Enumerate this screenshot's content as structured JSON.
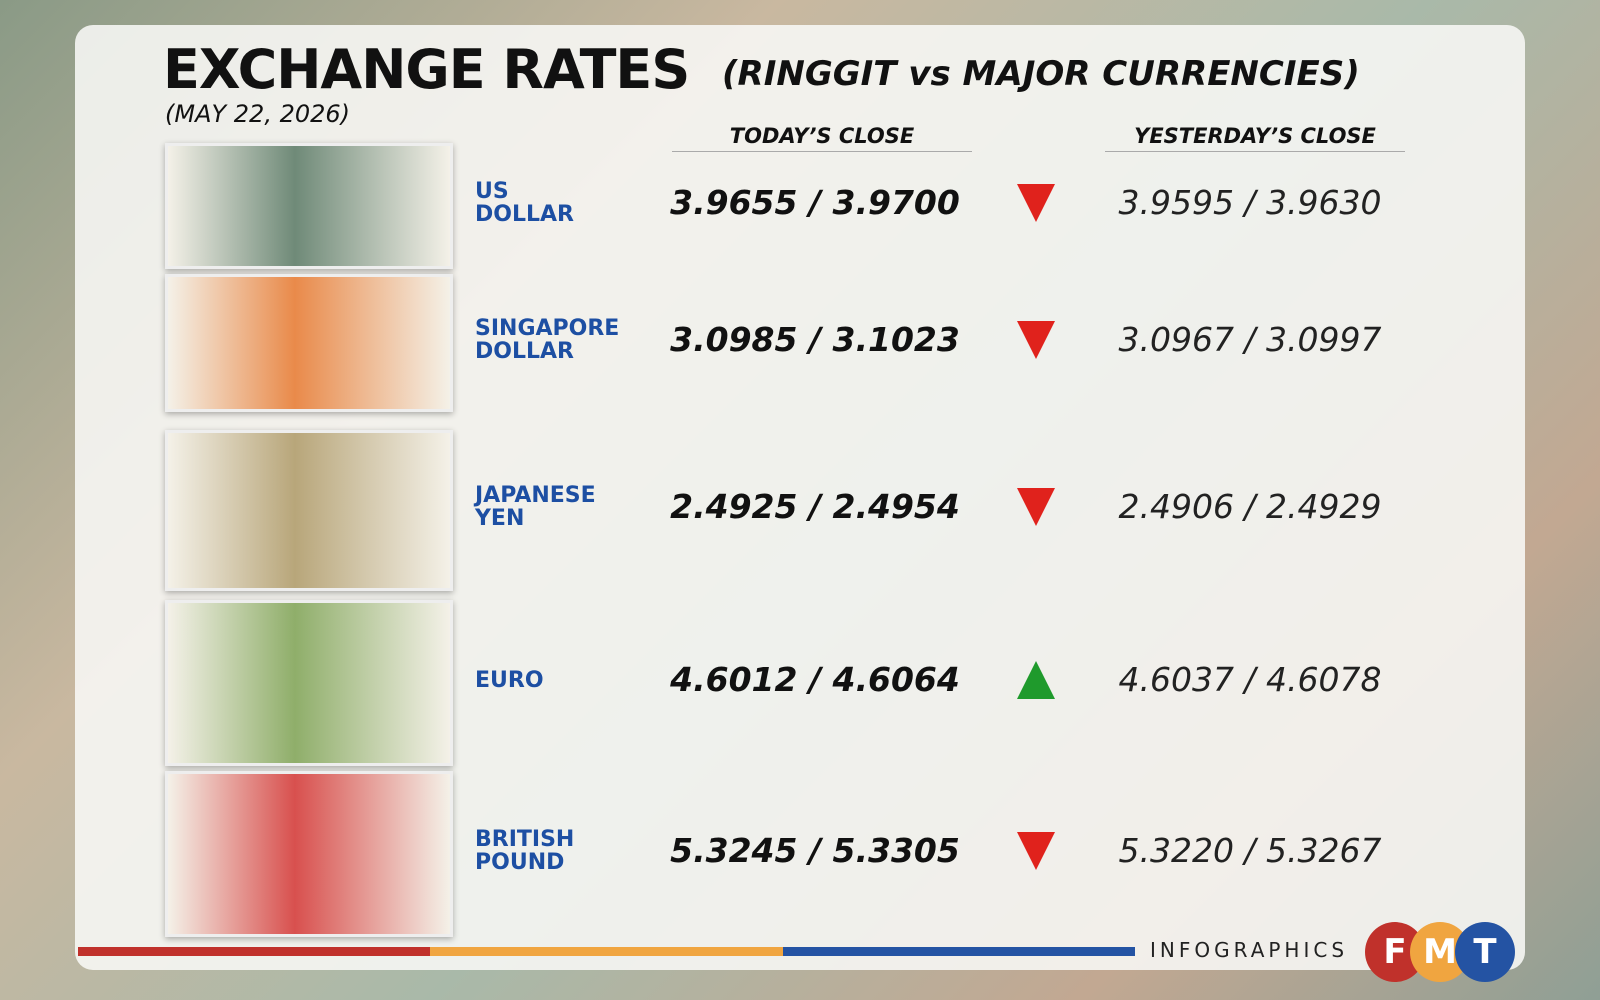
{
  "header": {
    "title": "EXCHANGE RATES",
    "subtitle": "(RINGGIT vs MAJOR CURRENCIES)",
    "date": "(MAY 22, 2026)"
  },
  "columns": {
    "today": "TODAY’S CLOSE",
    "yesterday": "YESTERDAY’S CLOSE"
  },
  "rows": [
    {
      "name": [
        "US",
        "DOLLAR"
      ],
      "today": "3.9655 / 3.9700",
      "trend": "down",
      "yesterday": "3.9595 / 3.9630",
      "note": "#6f8a78"
    },
    {
      "name": [
        "SINGAPORE",
        "DOLLAR"
      ],
      "today": "3.0985 / 3.1023",
      "trend": "down",
      "yesterday": "3.0967 / 3.0997",
      "note": "#e98a4a"
    },
    {
      "name": [
        "JAPANESE",
        "YEN"
      ],
      "today": "2.4925 / 2.4954",
      "trend": "down",
      "yesterday": "2.4906 / 2.4929",
      "note": "#b8a67a"
    },
    {
      "name": [
        "EURO"
      ],
      "today": "4.6012 / 4.6064",
      "trend": "up",
      "yesterday": "4.6037 / 4.6078",
      "note": "#8fae6a"
    },
    {
      "name": [
        "BRITISH",
        "POUND"
      ],
      "today": "5.3245 / 5.3305",
      "trend": "down",
      "yesterday": "5.3220 / 5.3267",
      "note": "#d8504e"
    }
  ],
  "footer": {
    "label": "INFOGRAPHICS",
    "logo": [
      "F",
      "M",
      "T"
    ]
  }
}
